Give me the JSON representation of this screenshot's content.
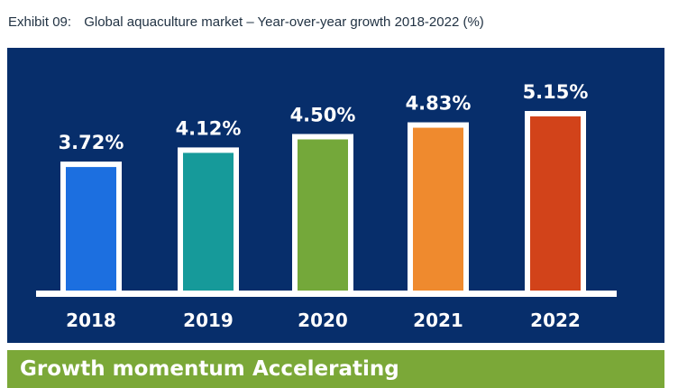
{
  "header": {
    "exhibit": "Exhibit 09:",
    "title": "Global aquaculture market – Year-over-year growth 2018-2022 (%)"
  },
  "chart_data": {
    "type": "bar",
    "categories": [
      "2018",
      "2019",
      "2020",
      "2021",
      "2022"
    ],
    "values": [
      3.72,
      4.12,
      4.5,
      4.83,
      5.15
    ],
    "value_labels": [
      "3.72%",
      "4.12%",
      "4.50%",
      "4.83%",
      "5.15%"
    ],
    "bar_colors": [
      "#1c6fe0",
      "#169a9a",
      "#74a83a",
      "#ef8a2e",
      "#d2431a"
    ],
    "bar_outline_color": "#ffffff",
    "background_color": "#072e6b",
    "ylim": [
      0,
      5.15
    ],
    "grid": false
  },
  "footer": {
    "label": "Growth momentum",
    "value": "Accelerating"
  }
}
